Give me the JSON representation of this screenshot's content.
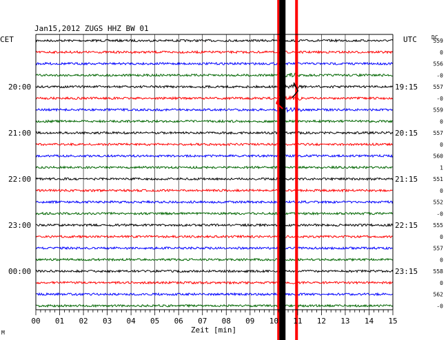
{
  "chart_data": {
    "type": "line",
    "title": "Jan15,2012  ZUGS HHZ BW 01",
    "left_timezone": "CET",
    "right_timezone": "UTC",
    "dc_header": "DC",
    "xlabel": "Zeit [min]",
    "xlim": [
      0,
      15
    ],
    "x_ticks": [
      "00",
      "01",
      "02",
      "03",
      "04",
      "05",
      "06",
      "07",
      "08",
      "09",
      "10",
      "11",
      "12",
      "13",
      "14",
      "15"
    ],
    "left_hour_labels": [
      "20:00",
      "21:00",
      "22:00",
      "23:00",
      "00:00"
    ],
    "right_hour_labels": [
      "19:15",
      "20:15",
      "21:15",
      "22:15",
      "23:15"
    ],
    "trace_colors": [
      "#000000",
      "#ff0000",
      "#0000ff",
      "#006600"
    ],
    "dc_values": [
      "559",
      "0",
      "556",
      "-0",
      "557",
      "-0",
      "559",
      "0",
      "557",
      "0",
      "560",
      "1",
      "551",
      "0",
      "552",
      "-0",
      "555",
      "0",
      "557",
      "0",
      "558",
      "0",
      "562",
      "-0"
    ],
    "event_minute": 10.2,
    "grid": true
  },
  "footer_mark": "M"
}
